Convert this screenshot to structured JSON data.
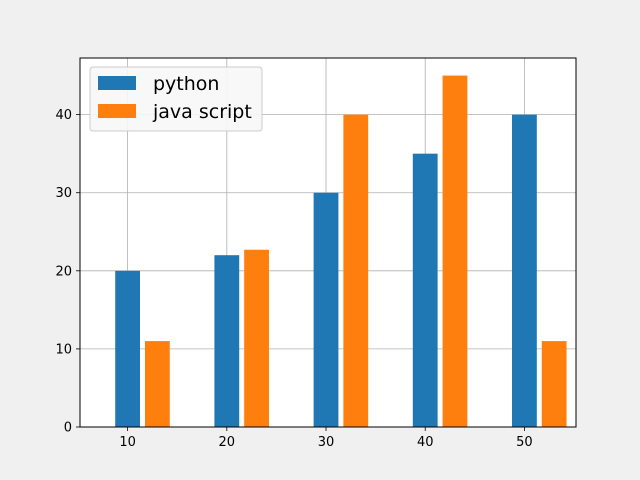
{
  "chart_data": {
    "type": "bar",
    "title": "",
    "xlabel": "",
    "ylabel": "",
    "x_ticks": [
      10,
      20,
      30,
      40,
      50
    ],
    "y_ticks": [
      0,
      10,
      20,
      30,
      40
    ],
    "xlim": [
      5.2,
      55.2
    ],
    "ylim": [
      0,
      47.25
    ],
    "grid": true,
    "legend_position": "top-left",
    "series": [
      {
        "name": "python",
        "color": "#1f77b4",
        "x": [
          10,
          20,
          30,
          40,
          50
        ],
        "values": [
          20,
          22,
          30,
          35,
          40
        ]
      },
      {
        "name": "java script",
        "color": "#ff7f0e",
        "x": [
          13,
          23,
          33,
          43,
          53
        ],
        "values": [
          11,
          22.7,
          40,
          45,
          11
        ]
      }
    ],
    "bar_width": 2.5
  }
}
